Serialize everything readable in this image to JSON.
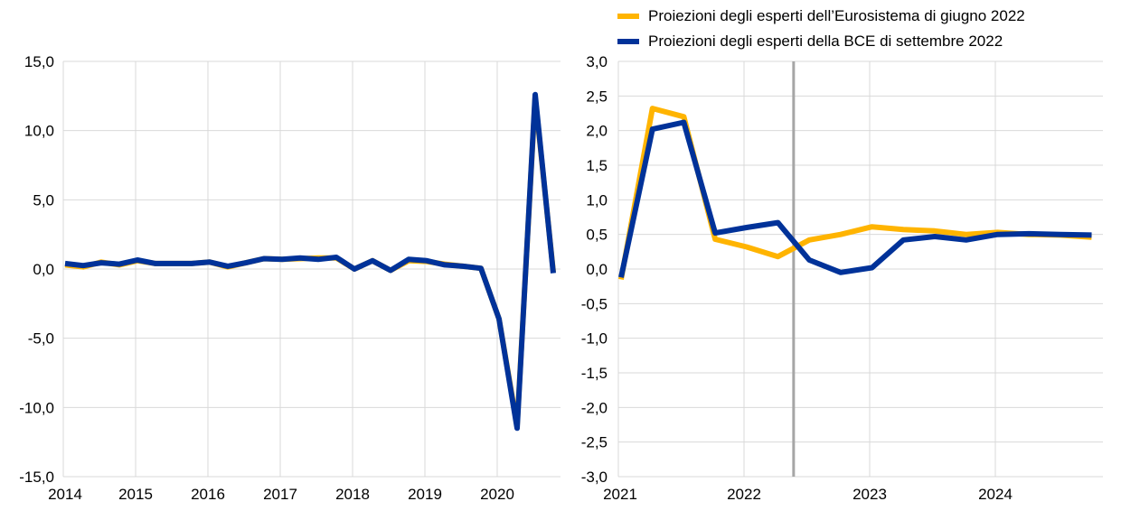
{
  "colors": {
    "yellow": "#FFB400",
    "blue": "#003299",
    "grid": "#d9d9d9",
    "marker": "#a6a6a6"
  },
  "legend": [
    {
      "label": "Proiezioni degli esperti dell’Eurosistema di giugno 2022",
      "color": "#FFB400"
    },
    {
      "label": "Proiezioni degli esperti della BCE di settembre 2022",
      "color": "#003299"
    }
  ],
  "chart_data": [
    {
      "type": "line",
      "ylim": [
        -15,
        15
      ],
      "yticks": [
        15,
        10,
        5,
        0,
        -5,
        -10,
        -15
      ],
      "ytick_labels": [
        "15,0",
        "10,0",
        "5,0",
        "0,0",
        "-5,0",
        "-10,0",
        "-15,0"
      ],
      "xtick_labels": [
        "2014",
        "2015",
        "2016",
        "2017",
        "2018",
        "2019",
        "2020"
      ],
      "x_start": "2014 Q1",
      "frequency": "quarterly",
      "series": [
        {
          "name": "Proiezioni degli esperti dell’Eurosistema di giugno 2022",
          "values": [
            0.3,
            0.15,
            0.5,
            0.3,
            0.6,
            0.4,
            0.4,
            0.4,
            0.5,
            0.15,
            0.45,
            0.75,
            0.7,
            0.75,
            0.8,
            0.8,
            0.0,
            0.6,
            -0.1,
            0.6,
            0.55,
            0.35,
            0.2,
            0.05,
            -3.6,
            -11.3,
            12.4,
            -0.2
          ]
        },
        {
          "name": "Proiezioni degli esperti della BCE di settembre 2022",
          "values": [
            0.4,
            0.25,
            0.45,
            0.35,
            0.65,
            0.4,
            0.4,
            0.4,
            0.5,
            0.2,
            0.45,
            0.75,
            0.7,
            0.8,
            0.7,
            0.85,
            0.0,
            0.6,
            -0.1,
            0.7,
            0.6,
            0.3,
            0.2,
            0.05,
            -3.6,
            -11.5,
            12.6,
            -0.3
          ]
        }
      ]
    },
    {
      "type": "line",
      "ylim": [
        -3,
        3
      ],
      "yticks": [
        3,
        2.5,
        2,
        1.5,
        1,
        0.5,
        0,
        -0.5,
        -1,
        -1.5,
        -2,
        -2.5,
        -3
      ],
      "ytick_labels": [
        "3,0",
        "2,5",
        "2,0",
        "1,5",
        "1,0",
        "0,5",
        "0,0",
        "-0,5",
        "-1,0",
        "-1,5",
        "-2,0",
        "-2,5",
        "-3,0"
      ],
      "xtick_labels": [
        "2021",
        "2022",
        "2023",
        "2024"
      ],
      "x_start": "2021 Q1",
      "frequency": "quarterly",
      "vertical_marker": "2022 Q2/Q3",
      "series": [
        {
          "name": "Proiezioni degli esperti dell’Eurosistema di giugno 2022",
          "values": [
            -0.15,
            2.32,
            2.2,
            0.43,
            0.32,
            0.18,
            0.42,
            0.5,
            0.61,
            0.57,
            0.55,
            0.5,
            0.53,
            0.5,
            0.49,
            0.46
          ]
        },
        {
          "name": "Proiezioni degli esperti della BCE di settembre 2022",
          "values": [
            -0.12,
            2.02,
            2.12,
            0.52,
            0.6,
            0.67,
            0.13,
            -0.05,
            0.02,
            0.42,
            0.47,
            0.42,
            0.5,
            0.51,
            0.5,
            0.49
          ]
        }
      ]
    }
  ]
}
